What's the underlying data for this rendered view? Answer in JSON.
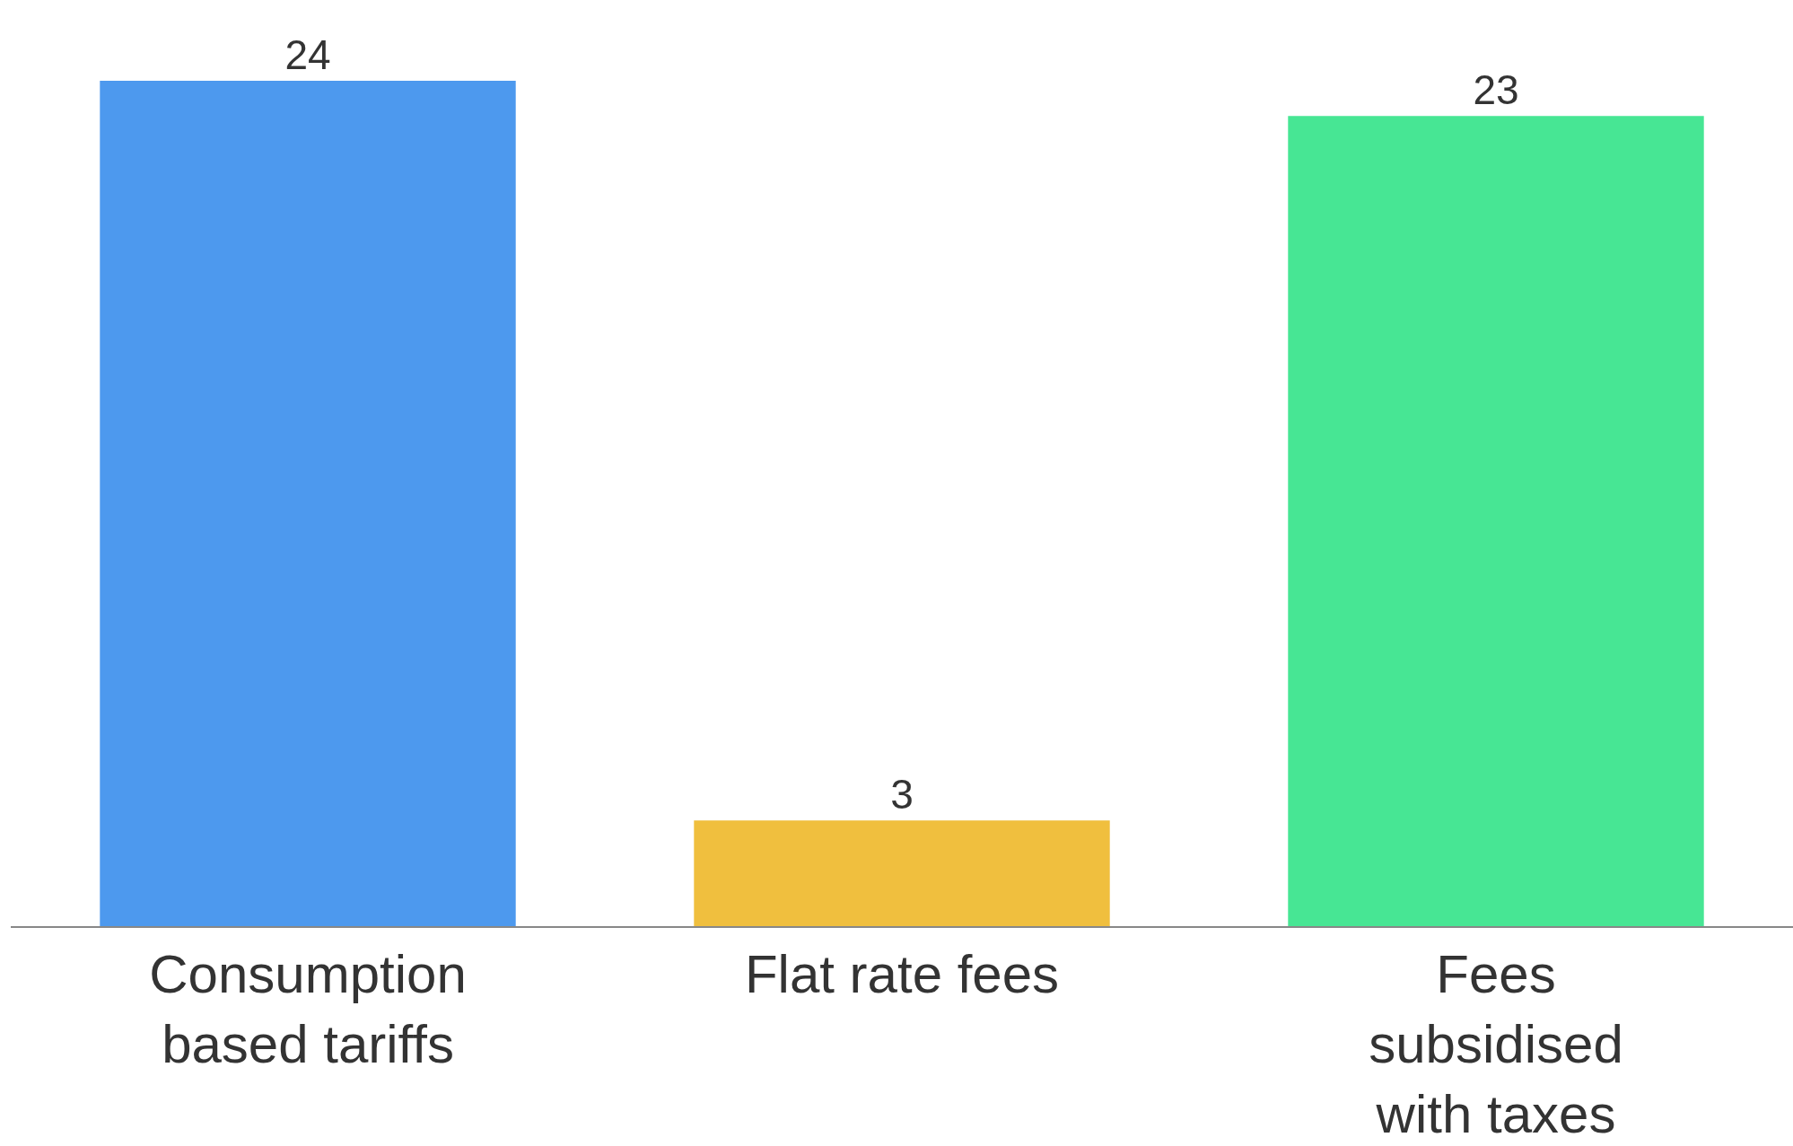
{
  "chart_data": {
    "type": "bar",
    "categories": [
      "Consumption based tariffs",
      "Flat rate fees",
      "Fees subsidised with taxes"
    ],
    "values": [
      24,
      3,
      23
    ],
    "colors": [
      "#4d99ee",
      "#f0bf3e",
      "#47e694"
    ],
    "data_labels": true
  }
}
